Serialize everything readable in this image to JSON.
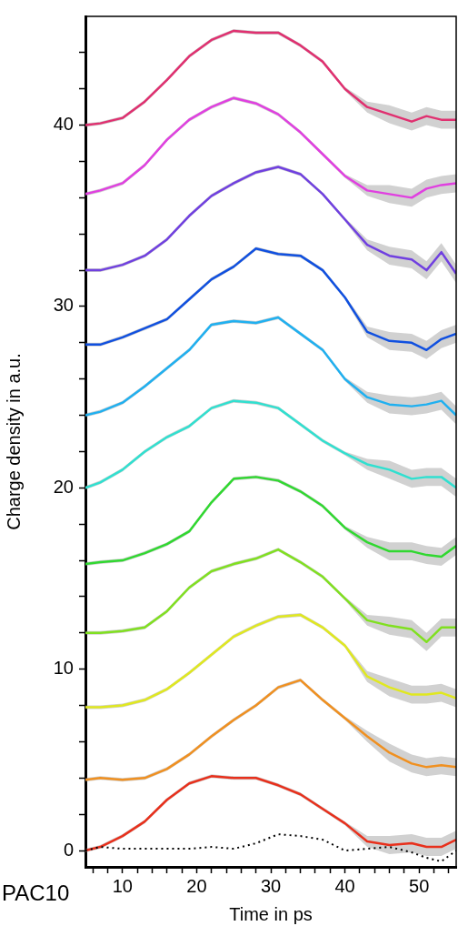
{
  "chart_data": {
    "type": "line",
    "xlabel": "Time in ps",
    "ylabel": "Charge density in a.u.",
    "annotations": [
      "PAC10"
    ],
    "x": [
      5,
      7,
      10,
      13,
      16,
      19,
      22,
      25,
      28,
      31,
      34,
      37,
      40,
      43,
      46,
      49,
      51,
      53,
      55
    ],
    "xlim": [
      5,
      55
    ],
    "xticks": [
      {
        "value": 6,
        "label": null
      },
      {
        "value": 8,
        "label": null
      },
      10,
      {
        "value": 12,
        "label": null
      },
      {
        "value": 14,
        "label": null
      },
      {
        "value": 16,
        "label": null
      },
      {
        "value": 18,
        "label": null
      },
      20,
      {
        "value": 22,
        "label": null
      },
      {
        "value": 24,
        "label": null
      },
      {
        "value": 26,
        "label": null
      },
      {
        "value": 28,
        "label": null
      },
      30,
      {
        "value": 32,
        "label": null
      },
      {
        "value": 34,
        "label": null
      },
      {
        "value": 36,
        "label": null
      },
      {
        "value": 38,
        "label": null
      },
      40,
      {
        "value": 42,
        "label": null
      },
      {
        "value": 44,
        "label": null
      },
      {
        "value": 46,
        "label": null
      },
      {
        "value": 48,
        "label": null
      },
      50,
      {
        "value": 52,
        "label": null
      },
      {
        "value": 54,
        "label": null
      }
    ],
    "ylim": [
      -0.9,
      46
    ],
    "yticks": [
      0,
      {
        "value": 2,
        "label": null
      },
      {
        "value": 4,
        "label": null
      },
      {
        "value": 6,
        "label": null
      },
      {
        "value": 8,
        "label": null
      },
      10,
      {
        "value": 12,
        "label": null
      },
      {
        "value": 14,
        "label": null
      },
      {
        "value": 16,
        "label": null
      },
      {
        "value": 18,
        "label": null
      },
      20,
      {
        "value": 22,
        "label": null
      },
      {
        "value": 24,
        "label": null
      },
      {
        "value": 26,
        "label": null
      },
      {
        "value": 28,
        "label": null
      },
      30,
      {
        "value": 32,
        "label": null
      },
      {
        "value": 34,
        "label": null
      },
      {
        "value": 36,
        "label": null
      },
      {
        "value": 38,
        "label": null
      },
      40,
      {
        "value": 42,
        "label": null
      },
      {
        "value": 44,
        "label": null
      }
    ],
    "grid": false,
    "legend": false,
    "marker": "none",
    "series": [
      {
        "color": "#000000",
        "line_style": "dotted",
        "values": [
          0.0,
          0.2,
          0.1,
          0.1,
          0.1,
          0.1,
          0.2,
          0.1,
          0.4,
          0.9,
          0.8,
          0.6,
          0.0,
          0.1,
          0.2,
          -0.1,
          -0.4,
          -0.6,
          0.0
        ]
      },
      {
        "color": "#e8301c",
        "values": [
          0,
          0.2,
          0.8,
          1.6,
          2.8,
          3.7,
          4.1,
          4.0,
          4.0,
          3.6,
          3.1,
          2.3,
          1.5,
          0.5,
          0.3,
          0.4,
          0.2,
          0.2,
          0.6
        ],
        "lower": [
          -0.1,
          0.1,
          0.7,
          1.5,
          2.7,
          3.6,
          4.0,
          3.9,
          3.9,
          3.5,
          3.0,
          2.2,
          1.4,
          0.2,
          -0.2,
          -0.1,
          -0.3,
          -0.3,
          0.1
        ],
        "upper": [
          0.1,
          0.3,
          0.9,
          1.7,
          2.9,
          3.8,
          4.2,
          4.1,
          4.1,
          3.7,
          3.2,
          2.4,
          1.6,
          0.8,
          0.8,
          0.9,
          0.7,
          0.7,
          1.1
        ]
      },
      {
        "color": "#f09020",
        "values": [
          3.9,
          4.0,
          3.9,
          4.0,
          4.5,
          5.3,
          6.3,
          7.2,
          8.0,
          9.0,
          9.4,
          8.3,
          7.3,
          6.3,
          5.4,
          4.8,
          4.6,
          4.7,
          4.6
        ],
        "lower": [
          3.8,
          3.9,
          3.8,
          3.9,
          4.4,
          5.2,
          6.2,
          7.1,
          7.9,
          8.9,
          9.3,
          8.2,
          7.2,
          6.0,
          4.9,
          4.3,
          4.1,
          4.2,
          4.1
        ],
        "upper": [
          4.0,
          4.1,
          4.0,
          4.1,
          4.6,
          5.4,
          6.4,
          7.3,
          8.1,
          9.1,
          9.5,
          8.4,
          7.4,
          6.6,
          5.9,
          5.3,
          5.1,
          5.2,
          5.1
        ]
      },
      {
        "color": "#e0e820",
        "values": [
          7.9,
          7.9,
          8.0,
          8.3,
          8.9,
          9.8,
          10.8,
          11.8,
          12.4,
          12.9,
          13.0,
          12.3,
          11.3,
          9.6,
          9.0,
          8.6,
          8.6,
          8.7,
          8.4
        ],
        "lower": [
          7.8,
          7.8,
          7.9,
          8.2,
          8.8,
          9.7,
          10.7,
          11.7,
          12.3,
          12.8,
          12.9,
          12.2,
          11.2,
          9.3,
          8.5,
          8.1,
          8.1,
          8.2,
          7.9
        ],
        "upper": [
          8.0,
          8.0,
          8.1,
          8.4,
          9.0,
          9.9,
          10.9,
          11.9,
          12.5,
          13.0,
          13.1,
          12.4,
          11.4,
          9.9,
          9.5,
          9.1,
          9.1,
          9.2,
          8.9
        ]
      },
      {
        "color": "#80e020",
        "values": [
          12.0,
          12.0,
          12.1,
          12.3,
          13.2,
          14.5,
          15.4,
          15.8,
          16.1,
          16.6,
          15.9,
          15.1,
          13.9,
          12.7,
          12.4,
          12.2,
          11.5,
          12.3,
          12.3
        ],
        "lower": [
          11.9,
          11.9,
          12.0,
          12.2,
          13.1,
          14.4,
          15.3,
          15.7,
          16.0,
          16.5,
          15.8,
          15.0,
          13.8,
          12.4,
          11.9,
          11.7,
          11.0,
          11.8,
          11.8
        ],
        "upper": [
          12.1,
          12.1,
          12.2,
          12.4,
          13.3,
          14.6,
          15.5,
          15.9,
          16.2,
          16.7,
          16.0,
          15.2,
          14.0,
          13.0,
          12.9,
          12.7,
          12.0,
          12.8,
          12.8
        ]
      },
      {
        "color": "#30d830",
        "values": [
          15.8,
          15.9,
          16.0,
          16.4,
          16.9,
          17.6,
          19.2,
          20.5,
          20.6,
          20.4,
          19.8,
          19.0,
          17.8,
          17.0,
          16.5,
          16.5,
          16.3,
          16.2,
          16.8
        ],
        "lower": [
          15.7,
          15.8,
          15.9,
          16.3,
          16.8,
          17.5,
          19.1,
          20.4,
          20.5,
          20.3,
          19.7,
          18.9,
          17.7,
          16.7,
          16.0,
          16.0,
          15.8,
          15.7,
          16.3
        ],
        "upper": [
          15.9,
          16.0,
          16.1,
          16.5,
          17.0,
          17.7,
          19.3,
          20.6,
          20.7,
          20.5,
          19.9,
          19.1,
          17.9,
          17.3,
          17.0,
          17.0,
          16.8,
          16.7,
          17.3
        ]
      },
      {
        "color": "#30e0d0",
        "values": [
          20.0,
          20.3,
          21.0,
          22.0,
          22.8,
          23.4,
          24.4,
          24.8,
          24.7,
          24.4,
          23.5,
          22.6,
          21.9,
          21.3,
          21.0,
          20.5,
          20.6,
          20.6,
          20.0
        ],
        "lower": [
          19.9,
          20.2,
          20.9,
          21.9,
          22.7,
          23.3,
          24.3,
          24.7,
          24.6,
          24.3,
          23.4,
          22.5,
          21.8,
          21.0,
          20.5,
          20.0,
          20.1,
          20.1,
          19.5
        ],
        "upper": [
          20.1,
          20.4,
          21.1,
          22.1,
          22.9,
          23.5,
          24.5,
          24.9,
          24.8,
          24.5,
          23.6,
          22.7,
          22.0,
          21.6,
          21.5,
          21.0,
          21.1,
          21.1,
          20.5
        ]
      },
      {
        "color": "#20b0f0",
        "values": [
          24.0,
          24.2,
          24.7,
          25.6,
          26.6,
          27.6,
          29.0,
          29.2,
          29.1,
          29.4,
          28.5,
          27.6,
          26.0,
          25.0,
          24.6,
          24.5,
          24.6,
          24.8,
          24.0
        ],
        "lower": [
          23.9,
          24.1,
          24.6,
          25.5,
          26.5,
          27.5,
          28.9,
          29.1,
          29.0,
          29.3,
          28.4,
          27.5,
          25.9,
          24.7,
          24.1,
          24.0,
          24.1,
          24.3,
          23.5
        ],
        "upper": [
          24.1,
          24.3,
          24.8,
          25.7,
          26.7,
          27.7,
          29.1,
          29.3,
          29.2,
          29.5,
          28.6,
          27.7,
          26.1,
          25.3,
          25.1,
          25.0,
          25.1,
          25.3,
          24.5
        ]
      },
      {
        "color": "#1050e0",
        "values": [
          27.9,
          27.9,
          28.3,
          28.8,
          29.3,
          30.4,
          31.5,
          32.2,
          33.2,
          32.9,
          32.8,
          32.0,
          30.5,
          28.6,
          28.1,
          28.0,
          27.6,
          28.2,
          28.5
        ],
        "lower": [
          27.8,
          27.8,
          28.2,
          28.7,
          29.2,
          30.3,
          31.4,
          32.1,
          33.1,
          32.8,
          32.7,
          31.9,
          30.4,
          28.3,
          27.6,
          27.5,
          27.1,
          27.7,
          28.0
        ],
        "upper": [
          28.0,
          28.0,
          28.4,
          28.9,
          29.4,
          30.5,
          31.6,
          32.3,
          33.3,
          33.0,
          32.9,
          32.1,
          30.6,
          28.9,
          28.6,
          28.5,
          28.1,
          28.7,
          29.0
        ]
      },
      {
        "color": "#7040e0",
        "values": [
          32.0,
          32.0,
          32.3,
          32.8,
          33.7,
          35.0,
          36.1,
          36.8,
          37.4,
          37.7,
          37.3,
          36.2,
          34.8,
          33.4,
          32.8,
          32.6,
          32.0,
          33.0,
          31.8
        ],
        "lower": [
          31.9,
          31.9,
          32.2,
          32.7,
          33.6,
          34.9,
          36.0,
          36.7,
          37.3,
          37.6,
          37.2,
          36.1,
          34.7,
          33.1,
          32.3,
          32.1,
          31.5,
          32.5,
          31.3
        ],
        "upper": [
          32.1,
          32.1,
          32.4,
          32.9,
          33.8,
          35.1,
          36.2,
          36.9,
          37.5,
          37.8,
          37.4,
          36.3,
          34.9,
          33.7,
          33.3,
          33.1,
          32.5,
          33.5,
          32.3
        ]
      },
      {
        "color": "#e040e0",
        "values": [
          36.2,
          36.4,
          36.8,
          37.8,
          39.2,
          40.3,
          41.0,
          41.5,
          41.2,
          40.6,
          39.6,
          38.4,
          37.2,
          36.4,
          36.2,
          36.0,
          36.5,
          36.7,
          36.8
        ],
        "lower": [
          36.1,
          36.3,
          36.7,
          37.7,
          39.1,
          40.2,
          40.9,
          41.4,
          41.1,
          40.5,
          39.5,
          38.3,
          37.1,
          36.1,
          35.7,
          35.5,
          36.0,
          36.2,
          36.3
        ],
        "upper": [
          36.3,
          36.5,
          36.9,
          37.9,
          39.3,
          40.4,
          41.1,
          41.6,
          41.3,
          40.7,
          39.7,
          38.5,
          37.3,
          36.7,
          36.7,
          36.5,
          37.0,
          37.2,
          37.3
        ]
      },
      {
        "color": "#e03070",
        "values": [
          40.0,
          40.1,
          40.4,
          41.3,
          42.5,
          43.8,
          44.7,
          45.2,
          45.1,
          45.1,
          44.4,
          43.5,
          42.0,
          41.0,
          40.6,
          40.2,
          40.5,
          40.3,
          40.3
        ],
        "lower": [
          39.9,
          40.0,
          40.3,
          41.2,
          42.4,
          43.7,
          44.6,
          45.1,
          45.0,
          45.0,
          44.3,
          43.4,
          41.9,
          40.7,
          40.1,
          39.7,
          40.0,
          39.8,
          39.8
        ],
        "upper": [
          40.1,
          40.2,
          40.5,
          41.4,
          42.6,
          43.9,
          44.8,
          45.3,
          45.2,
          45.2,
          44.5,
          43.6,
          42.1,
          41.3,
          41.1,
          40.7,
          41.0,
          40.8,
          40.8
        ]
      }
    ]
  }
}
